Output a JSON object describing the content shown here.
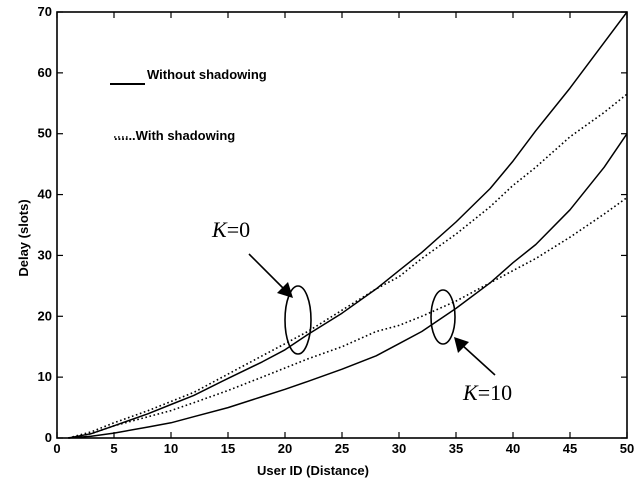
{
  "chart_data": {
    "type": "line",
    "title": "",
    "xlabel": "User ID (Distance)",
    "ylabel": "Delay (slots)",
    "xlim": [
      0,
      50
    ],
    "ylim": [
      0,
      70
    ],
    "xticks": [
      "0",
      "5",
      "10",
      "15",
      "20",
      "25",
      "30",
      "35",
      "40",
      "45",
      "50"
    ],
    "yticks": [
      "0",
      "10",
      "20",
      "30",
      "40",
      "50",
      "60",
      "70"
    ],
    "grid": false,
    "legend_position": "top-left",
    "legend": [
      {
        "label": "Without shadowing",
        "style": "solid"
      },
      {
        "label": "......With shadowing",
        "style": "dotted"
      }
    ],
    "annotations": [
      {
        "k": "K",
        "text": "=0"
      },
      {
        "k": "K",
        "text": "=10"
      }
    ],
    "series": [
      {
        "style": "solid",
        "group": "K=0",
        "x": [
          1,
          3,
          5,
          8,
          10,
          12,
          15,
          18,
          20,
          22,
          25,
          28,
          30,
          32,
          35,
          38,
          40,
          42,
          45,
          48,
          50
        ],
        "y": [
          0,
          0.7,
          2,
          4,
          5.5,
          7,
          9.8,
          12.5,
          14.5,
          17,
          20.5,
          24.5,
          27.5,
          30.5,
          35.5,
          41,
          45.5,
          50.5,
          57.5,
          65,
          70
        ]
      },
      {
        "style": "dotted",
        "group": "K=0",
        "x": [
          1,
          3,
          5,
          8,
          10,
          12,
          15,
          18,
          20,
          22,
          25,
          28,
          30,
          32,
          35,
          38,
          40,
          42,
          45,
          48,
          50
        ],
        "y": [
          0,
          1,
          2.5,
          4.5,
          6,
          7.5,
          10.5,
          13.5,
          15.5,
          17.5,
          21,
          24.5,
          26.5,
          29.5,
          33.5,
          38,
          41.5,
          44.5,
          49.5,
          53.5,
          56.5
        ]
      },
      {
        "style": "solid",
        "group": "K=10",
        "x": [
          1,
          3,
          5,
          8,
          10,
          12,
          15,
          18,
          20,
          22,
          25,
          28,
          30,
          32,
          35,
          38,
          40,
          42,
          45,
          48,
          50
        ],
        "y": [
          0,
          0.3,
          0.8,
          1.8,
          2.5,
          3.5,
          5,
          6.8,
          8,
          9.3,
          11.3,
          13.5,
          15.5,
          17.5,
          21.3,
          25.5,
          28.8,
          31.8,
          37.5,
          44.5,
          50
        ]
      },
      {
        "style": "dotted",
        "group": "K=10",
        "x": [
          1,
          3,
          5,
          8,
          10,
          12,
          15,
          18,
          20,
          22,
          25,
          28,
          30,
          32,
          35,
          38,
          40,
          42,
          45,
          48,
          50
        ],
        "y": [
          0,
          0.7,
          2,
          3.5,
          4.5,
          5.8,
          7.8,
          10,
          11.5,
          13,
          15,
          17.5,
          18.5,
          20,
          22.5,
          25.5,
          27.5,
          29.5,
          33,
          36.8,
          39.5
        ]
      }
    ]
  }
}
